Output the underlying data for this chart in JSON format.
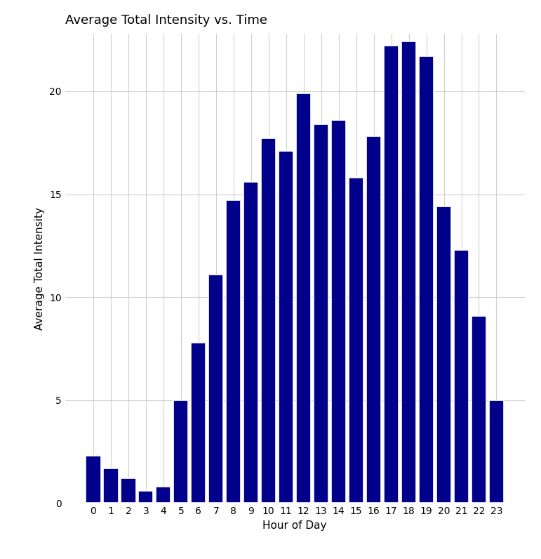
{
  "title": "Average Total Intensity vs. Time",
  "xlabel": "Hour of Day",
  "ylabel": "Average Total Intensity",
  "bar_color": "#00008B",
  "background_color": "#ffffff",
  "grid_color": "#d0d0d0",
  "hours": [
    0,
    1,
    2,
    3,
    4,
    5,
    6,
    7,
    8,
    9,
    10,
    11,
    12,
    13,
    14,
    15,
    16,
    17,
    18,
    19,
    20,
    21,
    22,
    23
  ],
  "values": [
    2.3,
    1.7,
    1.2,
    0.6,
    0.8,
    5.0,
    7.8,
    11.1,
    14.7,
    15.6,
    17.7,
    17.1,
    19.9,
    18.4,
    18.6,
    15.8,
    17.8,
    22.2,
    22.4,
    21.7,
    14.4,
    12.3,
    9.1,
    5.0
  ],
  "ylim": [
    0,
    22.8
  ],
  "yticks": [
    0,
    5,
    10,
    15,
    20
  ],
  "title_fontsize": 13,
  "label_fontsize": 11,
  "tick_fontsize": 10,
  "bar_width": 0.85,
  "edge_color": "white",
  "edge_linewidth": 1.2,
  "figsize": [
    7.71,
    7.96
  ],
  "dpi": 100
}
